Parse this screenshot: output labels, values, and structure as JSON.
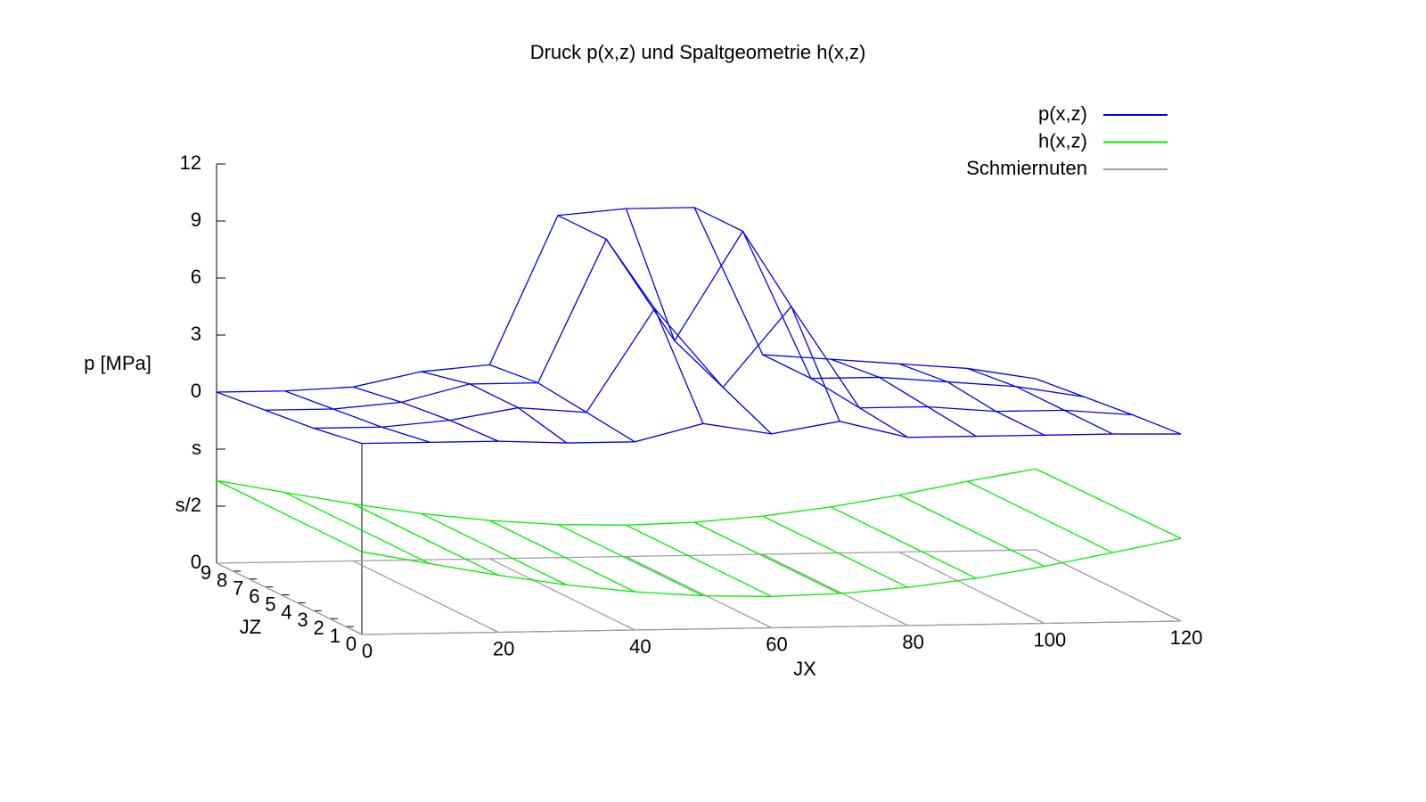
{
  "chart_data": {
    "type": "surface3d",
    "title": "Druck p(x,z) und Spaltgeometrie h(x,z)",
    "xlabel": "JX",
    "zlabel": "JZ",
    "ylabel": "p [MPa]",
    "xlim": [
      0,
      120
    ],
    "zlim": [
      0,
      9
    ],
    "ylim": [
      0,
      7
    ],
    "xticks": [
      0,
      20,
      40,
      60,
      80,
      100,
      120
    ],
    "zticks": [
      0,
      1,
      2,
      3,
      4,
      5,
      6,
      7,
      8,
      9
    ],
    "yticks": [
      {
        "value": 0,
        "label": "0"
      },
      {
        "value": 1,
        "label": "s/2"
      },
      {
        "value": 2,
        "label": "s"
      },
      {
        "value": 3,
        "label": "0"
      },
      {
        "value": 4,
        "label": "3"
      },
      {
        "value": 5,
        "label": "6"
      },
      {
        "value": 6,
        "label": "9"
      },
      {
        "value": 7,
        "label": "12"
      }
    ],
    "legend": "top-right",
    "series": [
      {
        "name": "Schmiernuten",
        "color": "#a0a0a0",
        "x": [
          0,
          20,
          40,
          60,
          80,
          100,
          120
        ],
        "z": [
          0,
          9
        ],
        "values": [
          [
            0,
            0,
            0,
            0,
            0,
            0,
            0
          ],
          [
            0,
            0,
            0,
            0,
            0,
            0,
            0
          ]
        ]
      },
      {
        "name": "h(x,z)",
        "color": "#00ee00",
        "x": [
          0,
          10,
          20,
          30,
          40,
          50,
          60,
          70,
          80,
          90,
          100,
          110,
          120
        ],
        "z": [
          0,
          9
        ],
        "values": [
          [
            1.45,
            1.22,
            1.0,
            0.81,
            0.67,
            0.58,
            0.55,
            0.58,
            0.67,
            0.81,
            1.0,
            1.22,
            1.45
          ],
          [
            1.45,
            1.22,
            1.0,
            0.81,
            0.67,
            0.58,
            0.55,
            0.58,
            0.67,
            0.81,
            1.0,
            1.22,
            1.42
          ]
        ]
      },
      {
        "name": "p(x,z)",
        "color": "#0000ee",
        "x": [
          0,
          10,
          20,
          30,
          40,
          50,
          60,
          70,
          80,
          90,
          100,
          110,
          120
        ],
        "z": [
          0,
          3,
          6,
          9
        ],
        "values": [
          [
            3.35,
            3.35,
            3.35,
            3.3,
            3.3,
            3.6,
            3.4,
            3.6,
            3.3,
            3.3,
            3.3,
            3.3,
            3.28
          ],
          [
            3.2,
            3.2,
            3.3,
            3.5,
            3.4,
            5.2,
            3.8,
            5.2,
            3.4,
            3.4,
            3.3,
            3.3,
            3.2
          ],
          [
            3.1,
            3.1,
            3.2,
            3.5,
            3.5,
            6.0,
            4.2,
            6.1,
            3.5,
            3.5,
            3.4,
            3.3,
            3.1
          ],
          [
            3.0,
            3.0,
            3.05,
            3.3,
            3.4,
            6.0,
            6.1,
            6.1,
            3.5,
            3.4,
            3.3,
            3.2,
            3.0
          ]
        ]
      }
    ]
  }
}
